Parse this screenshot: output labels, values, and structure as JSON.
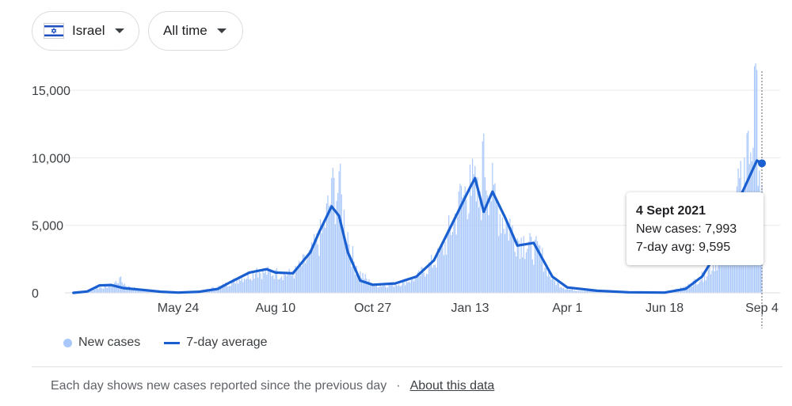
{
  "filters": {
    "country": {
      "label": "Israel",
      "flag_icon": "israel-flag-icon"
    },
    "time_range": {
      "label": "All time"
    }
  },
  "chart_data": {
    "type": "bar",
    "title": "",
    "xlabel": "",
    "ylabel": "",
    "ylim": [
      0,
      17000
    ],
    "yticks": [
      0,
      5000,
      10000,
      15000
    ],
    "ytick_labels": [
      "0",
      "5,000",
      "10,000",
      "15,000"
    ],
    "xtick_labels": [
      "May 24",
      "Aug 10",
      "Oct 27",
      "Jan 13",
      "Apr 1",
      "Jun 18",
      "Sep 4"
    ],
    "grid": true,
    "legend_placement": "bottom-left",
    "colors": {
      "new_cases": "#a8c7fa",
      "seven_day_average": "#1a5fd0"
    },
    "series": [
      {
        "name": "New cases",
        "kind": "bar",
        "points": [
          [
            "Mar 1",
            5
          ],
          [
            "Mar 12",
            100
          ],
          [
            "Mar 20",
            420
          ],
          [
            "Mar 31",
            620
          ],
          [
            "Apr 7",
            1150
          ],
          [
            "Apr 14",
            500
          ],
          [
            "Apr 25",
            260
          ],
          [
            "May 10",
            60
          ],
          [
            "May 24",
            25
          ],
          [
            "Jun 10",
            110
          ],
          [
            "Jun 28",
            600
          ],
          [
            "Jul 12",
            1200
          ],
          [
            "Jul 26",
            1850
          ],
          [
            "Aug 10",
            1700
          ],
          [
            "Aug 24",
            1600
          ],
          [
            "Sep 7",
            3200
          ],
          [
            "Sep 17",
            5200
          ],
          [
            "Sep 24",
            8500
          ],
          [
            "Sep 30",
            9000
          ],
          [
            "Oct 7",
            4500
          ],
          [
            "Oct 14",
            2000
          ],
          [
            "Oct 27",
            650
          ],
          [
            "Nov 14",
            700
          ],
          [
            "Dec 1",
            1300
          ],
          [
            "Dec 21",
            3300
          ],
          [
            "Jan 4",
            7500
          ],
          [
            "Jan 13",
            9500
          ],
          [
            "Jan 21",
            7500
          ],
          [
            "Jan 24",
            11800
          ],
          [
            "Feb 1",
            8000
          ],
          [
            "Feb 14",
            5500
          ],
          [
            "Feb 25",
            4200
          ],
          [
            "Mar 10",
            3500
          ],
          [
            "Mar 20",
            1100
          ],
          [
            "Apr 1",
            300
          ],
          [
            "Apr 20",
            120
          ],
          [
            "May 15",
            40
          ],
          [
            "Jun 18",
            20
          ],
          [
            "Jul 5",
            500
          ],
          [
            "Jul 20",
            1500
          ],
          [
            "Aug 3",
            3500
          ],
          [
            "Aug 17",
            8500
          ],
          [
            "Aug 24",
            12000
          ],
          [
            "Aug 31",
            16500
          ],
          [
            "Sep 4",
            7993
          ]
        ]
      },
      {
        "name": "7-day average",
        "kind": "line",
        "points": [
          [
            "Mar 1",
            0
          ],
          [
            "Mar 12",
            100
          ],
          [
            "Mar 22",
            550
          ],
          [
            "Mar 31",
            580
          ],
          [
            "Apr 10",
            350
          ],
          [
            "Apr 25",
            220
          ],
          [
            "May 10",
            80
          ],
          [
            "May 24",
            20
          ],
          [
            "Jun 10",
            80
          ],
          [
            "Jun 25",
            300
          ],
          [
            "Jul 5",
            800
          ],
          [
            "Jul 20",
            1500
          ],
          [
            "Aug 3",
            1750
          ],
          [
            "Aug 10",
            1500
          ],
          [
            "Aug 24",
            1450
          ],
          [
            "Sep 7",
            3000
          ],
          [
            "Sep 14",
            4500
          ],
          [
            "Sep 24",
            6400
          ],
          [
            "Sep 30",
            5700
          ],
          [
            "Oct 7",
            3000
          ],
          [
            "Oct 17",
            900
          ],
          [
            "Oct 27",
            600
          ],
          [
            "Nov 14",
            700
          ],
          [
            "Dec 1",
            1200
          ],
          [
            "Dec 15",
            2400
          ],
          [
            "Dec 28",
            4800
          ],
          [
            "Jan 13",
            7800
          ],
          [
            "Jan 17",
            8500
          ],
          [
            "Jan 24",
            6000
          ],
          [
            "Jan 31",
            7500
          ],
          [
            "Feb 10",
            5600
          ],
          [
            "Feb 20",
            3500
          ],
          [
            "Mar 5",
            3700
          ],
          [
            "Mar 20",
            1200
          ],
          [
            "Apr 1",
            400
          ],
          [
            "Apr 25",
            150
          ],
          [
            "May 20",
            40
          ],
          [
            "Jun 18",
            20
          ],
          [
            "Jul 5",
            300
          ],
          [
            "Jul 18",
            1200
          ],
          [
            "Aug 3",
            3600
          ],
          [
            "Aug 17",
            7000
          ],
          [
            "Aug 31",
            9800
          ],
          [
            "Sep 4",
            9595
          ]
        ]
      }
    ],
    "tooltip": {
      "date": "4 Sept 2021",
      "new_cases_label": "New cases: 7,993",
      "avg_label": "7-day avg: 9,595"
    }
  },
  "legend": {
    "new_cases": "New cases",
    "seven_day_avg": "7-day average"
  },
  "footer": {
    "note": "Each day shows new cases reported since the previous day",
    "separator": "·",
    "link": "About this data"
  }
}
